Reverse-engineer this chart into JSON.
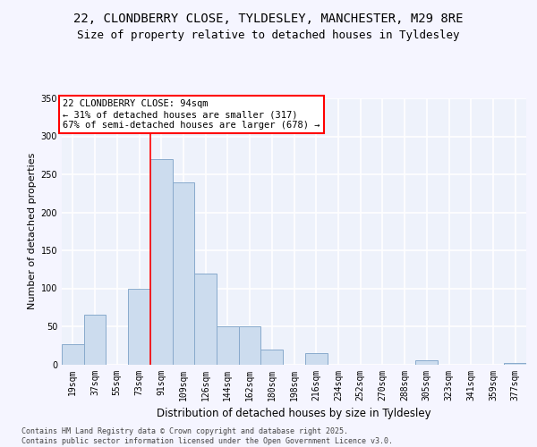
{
  "title_line1": "22, CLONDBERRY CLOSE, TYLDESLEY, MANCHESTER, M29 8RE",
  "title_line2": "Size of property relative to detached houses in Tyldesley",
  "xlabel": "Distribution of detached houses by size in Tyldesley",
  "ylabel": "Number of detached properties",
  "bar_color": "#ccdcee",
  "bar_edge_color": "#88aacc",
  "background_color": "#eef2fb",
  "grid_color": "#ffffff",
  "categories": [
    "19sqm",
    "37sqm",
    "55sqm",
    "73sqm",
    "91sqm",
    "109sqm",
    "126sqm",
    "144sqm",
    "162sqm",
    "180sqm",
    "198sqm",
    "216sqm",
    "234sqm",
    "252sqm",
    "270sqm",
    "288sqm",
    "305sqm",
    "323sqm",
    "341sqm",
    "359sqm",
    "377sqm"
  ],
  "values": [
    27,
    65,
    0,
    100,
    270,
    240,
    120,
    50,
    50,
    20,
    0,
    15,
    0,
    0,
    0,
    0,
    5,
    0,
    0,
    0,
    2
  ],
  "annotation_line1": "22 CLONDBERRY CLOSE: 94sqm",
  "annotation_line2": "← 31% of detached houses are smaller (317)",
  "annotation_line3": "67% of semi-detached houses are larger (678) →",
  "red_line_bar_index": 4,
  "ylim_max": 350,
  "yticks": [
    0,
    50,
    100,
    150,
    200,
    250,
    300,
    350
  ],
  "footer_text": "Contains HM Land Registry data © Crown copyright and database right 2025.\nContains public sector information licensed under the Open Government Licence v3.0.",
  "title_fontsize": 10,
  "subtitle_fontsize": 9,
  "ylabel_fontsize": 8,
  "xlabel_fontsize": 8.5,
  "tick_fontsize": 7,
  "annotation_fontsize": 7.5,
  "fig_bg_color": "#f5f5ff"
}
